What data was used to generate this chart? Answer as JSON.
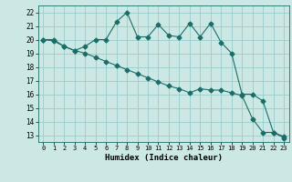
{
  "xlabel": "Humidex (Indice chaleur)",
  "background_color": "#cce8e4",
  "grid_color": "#99cccc",
  "line_color": "#1a6e6a",
  "xlim": [
    -0.5,
    23.5
  ],
  "ylim": [
    12.5,
    22.5
  ],
  "xticks": [
    0,
    1,
    2,
    3,
    4,
    5,
    6,
    7,
    8,
    9,
    10,
    11,
    12,
    13,
    14,
    15,
    16,
    17,
    18,
    19,
    20,
    21,
    22,
    23
  ],
  "yticks": [
    13,
    14,
    15,
    16,
    17,
    18,
    19,
    20,
    21,
    22
  ],
  "line1_x": [
    0,
    1,
    2,
    3,
    4,
    5,
    6,
    7,
    8,
    9,
    10,
    11,
    12,
    13,
    14,
    15,
    16,
    17,
    18,
    19,
    20,
    21,
    22,
    23
  ],
  "line1_y": [
    20.0,
    20.0,
    19.5,
    19.2,
    19.5,
    20.0,
    20.0,
    21.3,
    22.0,
    20.2,
    20.2,
    21.1,
    20.3,
    20.2,
    21.2,
    20.2,
    21.2,
    19.8,
    19.0,
    16.0,
    16.0,
    15.5,
    13.2,
    12.8
  ],
  "line2_x": [
    0,
    1,
    2,
    3,
    4,
    5,
    6,
    7,
    8,
    9,
    10,
    11,
    12,
    13,
    14,
    15,
    16,
    17,
    18,
    19,
    20,
    21,
    22,
    23
  ],
  "line2_y": [
    20.0,
    19.9,
    19.5,
    19.2,
    19.0,
    18.7,
    18.4,
    18.1,
    17.8,
    17.5,
    17.2,
    16.9,
    16.6,
    16.4,
    16.1,
    16.4,
    16.3,
    16.3,
    16.1,
    15.9,
    14.2,
    13.2,
    13.2,
    12.9
  ]
}
